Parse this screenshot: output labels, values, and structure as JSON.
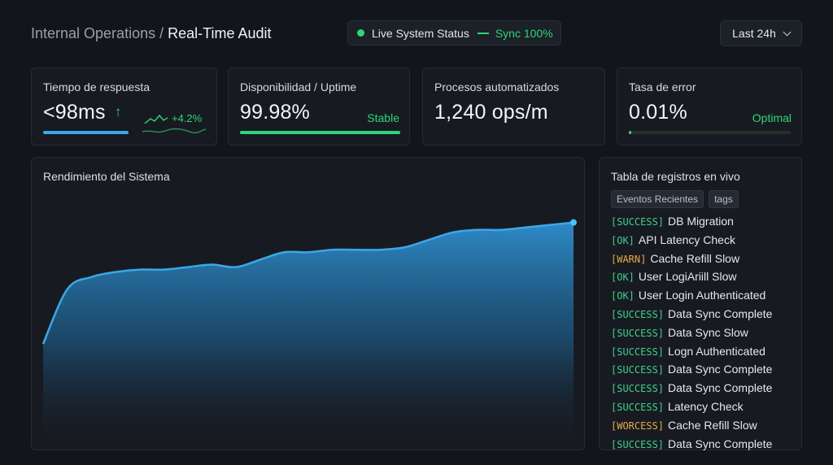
{
  "header": {
    "breadcrumb_prefix": "Internal Operations",
    "breadcrumb_sep": "/",
    "breadcrumb_title": "Real-Time Audit",
    "status_label": "Live System Status",
    "sync_label": "Sync 100%",
    "range_label": "Last 24h"
  },
  "metrics": {
    "response": {
      "label": "Tiempo de respuesta",
      "value": "<98ms",
      "arrow": "↑",
      "delta": "+4.2%"
    },
    "uptime": {
      "label": "Disponibilidad / Uptime",
      "value": "99.98%",
      "tag": "Stable"
    },
    "processes": {
      "label": "Procesos automatizados",
      "value": "1,240 ops/m"
    },
    "errors": {
      "label": "Tasa de error",
      "value": "0.01%",
      "tag": "Optimal"
    }
  },
  "performance": {
    "title": "Rendimiento del Sistema"
  },
  "chart_data": {
    "type": "area",
    "title": "Rendimiento del Sistema",
    "values": [
      0.38,
      0.6,
      0.65,
      0.67,
      0.68,
      0.68,
      0.69,
      0.7,
      0.69,
      0.72,
      0.75,
      0.75,
      0.76,
      0.76,
      0.76,
      0.77,
      0.8,
      0.83,
      0.84,
      0.84,
      0.85,
      0.86,
      0.87
    ],
    "ylim": [
      0,
      1
    ],
    "grid": false,
    "color": "#3aa8e8"
  },
  "logs": {
    "title": "Tabla de registros en vivo",
    "chips": [
      "Eventos Recientes",
      "tags"
    ],
    "rows": [
      {
        "level": "[SUCCESS]",
        "message": "DB Migration",
        "color": "#3fcf8e"
      },
      {
        "level": "[OK]",
        "message": "API Latency Check",
        "color": "#3fcf8e"
      },
      {
        "level": "[WARN]",
        "message": "Cache Refill Slow",
        "color": "#e8a948"
      },
      {
        "level": "[OK]",
        "message": "User LogiAriill Slow",
        "color": "#3fcf8e"
      },
      {
        "level": "[OK]",
        "message": "User Login Authenticated",
        "color": "#3fcf8e"
      },
      {
        "level": "[SUCCESS]",
        "message": "Data Sync Complete",
        "color": "#3fcf8e"
      },
      {
        "level": "[SUCCESS]",
        "message": "Data Sync Slow",
        "color": "#3fcf8e"
      },
      {
        "level": "[SUCCESS]",
        "message": "Logn Authenticated",
        "color": "#3fcf8e"
      },
      {
        "level": "[SUCCESS]",
        "message": "Data Sync Complete",
        "color": "#3fcf8e"
      },
      {
        "level": "[SUCCESS]",
        "message": "Data Sync Complete",
        "color": "#3fcf8e"
      },
      {
        "level": "[SUCCESS]",
        "message": "Latency Check",
        "color": "#3fcf8e"
      },
      {
        "level": "[WORCESS]",
        "message": "Cache Refill Slow",
        "color": "#e8a948"
      },
      {
        "level": "[SUCCESS]",
        "message": "Data Sync Complete",
        "color": "#3fcf8e"
      }
    ]
  },
  "colors": {
    "accent_blue": "#3aa8e8",
    "accent_green": "#2ed47a",
    "warn": "#e8a948"
  },
  "bars": {
    "response_fill": 1.0,
    "uptime_fill": 1.0,
    "errors_fill": 0.01
  }
}
